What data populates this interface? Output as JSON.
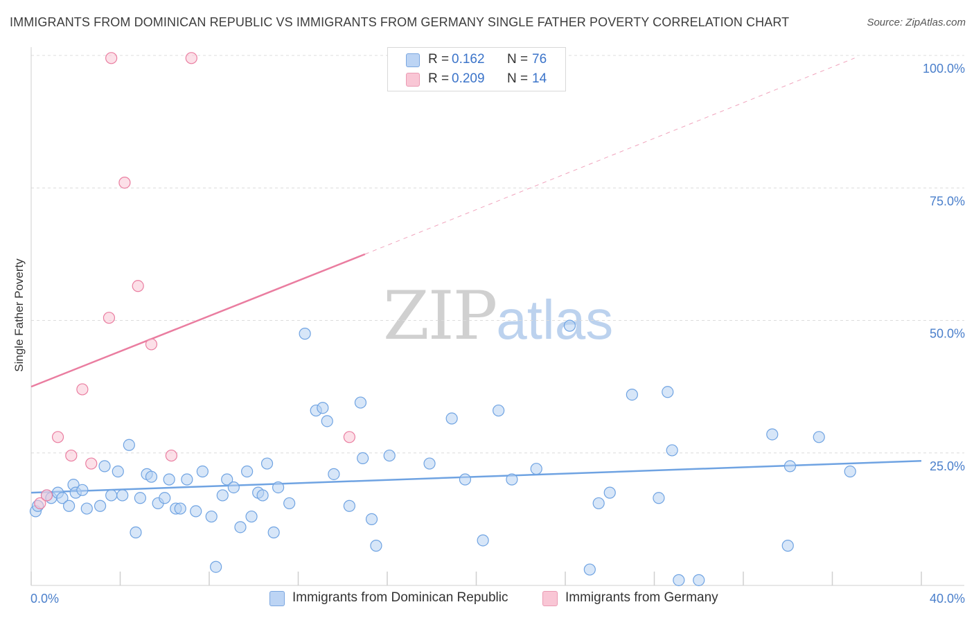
{
  "header": {
    "title": "IMMIGRANTS FROM DOMINICAN REPUBLIC VS IMMIGRANTS FROM GERMANY SINGLE FATHER POVERTY CORRELATION CHART",
    "source": "Source: ZipAtlas.com"
  },
  "watermark": {
    "zip": "ZIP",
    "atlas": "atlas"
  },
  "legend": {
    "rows": [
      {
        "r_label": "R =",
        "r_value": "0.162",
        "n_label": "N =",
        "n_value": "76",
        "color": "#a9c8f0"
      },
      {
        "r_label": "R =",
        "r_value": "0.209",
        "n_label": "N =",
        "n_value": "14",
        "color": "#f8bfd0"
      }
    ]
  },
  "chart_data": {
    "type": "scatter",
    "title": "IMMIGRANTS FROM DOMINICAN REPUBLIC VS IMMIGRANTS FROM GERMANY SINGLE FATHER POVERTY CORRELATION CHART",
    "xlabel": "",
    "ylabel": "Single Father Poverty",
    "xlim": [
      0,
      40
    ],
    "ylim": [
      0,
      100
    ],
    "x_tick_labels": [
      "0.0%",
      "40.0%"
    ],
    "y_ticks": [
      25,
      50,
      75,
      100
    ],
    "y_tick_labels": [
      "25.0%",
      "50.0%",
      "75.0%",
      "100.0%"
    ],
    "grid": true,
    "legend_position": "bottom",
    "series": [
      {
        "name": "Immigrants from Dominican Republic",
        "color": "#6fa3e2",
        "fill": "#b7d1f3",
        "trend": {
          "x": [
            0,
            40
          ],
          "y": [
            17.5,
            23.5
          ]
        },
        "points": [
          [
            0.2,
            14
          ],
          [
            0.3,
            15
          ],
          [
            0.7,
            17
          ],
          [
            0.9,
            16.5
          ],
          [
            1.2,
            17.5
          ],
          [
            1.4,
            16.5
          ],
          [
            1.7,
            15
          ],
          [
            1.9,
            19
          ],
          [
            2.0,
            17.5
          ],
          [
            2.3,
            18
          ],
          [
            2.5,
            14.5
          ],
          [
            3.1,
            15
          ],
          [
            3.3,
            22.5
          ],
          [
            3.6,
            17
          ],
          [
            3.9,
            21.5
          ],
          [
            4.1,
            17
          ],
          [
            4.4,
            26.5
          ],
          [
            4.7,
            10
          ],
          [
            4.9,
            16.5
          ],
          [
            5.2,
            21
          ],
          [
            5.4,
            20.5
          ],
          [
            5.7,
            15.5
          ],
          [
            6.0,
            16.5
          ],
          [
            6.2,
            20
          ],
          [
            6.5,
            14.5
          ],
          [
            6.7,
            14.5
          ],
          [
            7.0,
            20
          ],
          [
            7.4,
            14
          ],
          [
            7.7,
            21.5
          ],
          [
            8.1,
            13
          ],
          [
            8.3,
            3.5
          ],
          [
            8.6,
            17
          ],
          [
            8.8,
            20
          ],
          [
            9.1,
            18.5
          ],
          [
            9.4,
            11
          ],
          [
            9.7,
            21.5
          ],
          [
            9.9,
            13
          ],
          [
            10.2,
            17.5
          ],
          [
            10.4,
            17
          ],
          [
            10.6,
            23
          ],
          [
            10.9,
            10
          ],
          [
            11.1,
            18.5
          ],
          [
            11.6,
            15.5
          ],
          [
            12.3,
            47.5
          ],
          [
            12.8,
            33
          ],
          [
            13.1,
            33.5
          ],
          [
            13.3,
            31
          ],
          [
            13.6,
            21
          ],
          [
            14.3,
            15
          ],
          [
            14.8,
            34.5
          ],
          [
            14.9,
            24
          ],
          [
            15.3,
            12.5
          ],
          [
            15.5,
            7.5
          ],
          [
            16.1,
            24.5
          ],
          [
            17.9,
            23
          ],
          [
            18.9,
            31.5
          ],
          [
            19.5,
            20
          ],
          [
            20.3,
            8.5
          ],
          [
            21.0,
            33
          ],
          [
            21.6,
            20
          ],
          [
            22.7,
            22
          ],
          [
            24.2,
            49
          ],
          [
            25.1,
            3
          ],
          [
            25.5,
            15.5
          ],
          [
            26.0,
            17.5
          ],
          [
            27.0,
            36
          ],
          [
            28.2,
            16.5
          ],
          [
            28.6,
            36.5
          ],
          [
            28.8,
            25.5
          ],
          [
            29.1,
            1
          ],
          [
            30.0,
            1
          ],
          [
            33.3,
            28.5
          ],
          [
            34.1,
            22.5
          ],
          [
            34.0,
            7.5
          ],
          [
            35.4,
            28
          ],
          [
            36.8,
            21.5
          ]
        ]
      },
      {
        "name": "Immigrants from Germany",
        "color": "#ea7da0",
        "fill": "#f9c6d5",
        "trend": {
          "x": [
            0,
            15
          ],
          "y": [
            37.5,
            62.5
          ],
          "extended_x": [
            15,
            37
          ],
          "extended_y": [
            62.5,
            99.5
          ]
        },
        "points": [
          [
            0.4,
            15.5
          ],
          [
            0.7,
            17
          ],
          [
            1.2,
            28
          ],
          [
            1.8,
            24.5
          ],
          [
            2.3,
            37
          ],
          [
            2.7,
            23
          ],
          [
            3.5,
            50.5
          ],
          [
            3.6,
            99.5
          ],
          [
            4.2,
            76
          ],
          [
            4.8,
            56.5
          ],
          [
            5.4,
            45.5
          ],
          [
            6.3,
            24.5
          ],
          [
            7.2,
            99.5
          ],
          [
            14.3,
            28
          ]
        ]
      }
    ]
  },
  "bottom_legend": [
    {
      "label": "Immigrants from Dominican Republic"
    },
    {
      "label": "Immigrants from Germany"
    }
  ]
}
